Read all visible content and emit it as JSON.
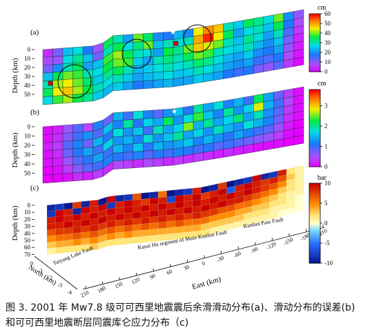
{
  "caption": {
    "line1": "图 3. 2001 年 Mw7.8 级可可西里地震震后余滑滑动分布(a)、滑动分布的误差(b)",
    "line2": "和可可西里地震断层同震库仑应力分布（c)"
  },
  "chart_data": [
    {
      "panel": "(a)",
      "type": "heatmap",
      "ylabel": "Depth (km)",
      "yticks": [
        0,
        10,
        20,
        30,
        40,
        50
      ],
      "colorbar": {
        "unit": "cm",
        "ticks": [
          0,
          10,
          20,
          30,
          40,
          50,
          60
        ],
        "range": [
          0,
          60
        ]
      },
      "rows": 7,
      "cols": 26,
      "markers": {
        "circles": 4,
        "stars": 2
      },
      "grid": [
        [
          5,
          12,
          25,
          28,
          18,
          9,
          35,
          30,
          22,
          40,
          34,
          20,
          18,
          24,
          20,
          45,
          52,
          48,
          30,
          26,
          35,
          32,
          28,
          40,
          20,
          10
        ],
        [
          8,
          10,
          28,
          32,
          25,
          12,
          30,
          36,
          28,
          33,
          40,
          25,
          30,
          28,
          30,
          50,
          58,
          45,
          35,
          22,
          28,
          30,
          25,
          35,
          18,
          8
        ],
        [
          12,
          20,
          30,
          35,
          22,
          25,
          38,
          42,
          35,
          30,
          28,
          22,
          36,
          32,
          40,
          48,
          44,
          40,
          30,
          25,
          32,
          28,
          22,
          30,
          15,
          6
        ],
        [
          25,
          35,
          40,
          38,
          30,
          28,
          36,
          40,
          38,
          26,
          22,
          30,
          33,
          30,
          35,
          40,
          38,
          30,
          28,
          26,
          30,
          24,
          20,
          25,
          12,
          4
        ],
        [
          30,
          42,
          45,
          40,
          34,
          26,
          32,
          35,
          30,
          24,
          26,
          28,
          30,
          28,
          30,
          34,
          32,
          28,
          24,
          22,
          26,
          20,
          18,
          22,
          10,
          3
        ],
        [
          35,
          45,
          48,
          42,
          36,
          30,
          28,
          30,
          26,
          22,
          24,
          26,
          28,
          25,
          26,
          30,
          28,
          25,
          22,
          20,
          22,
          16,
          15,
          18,
          8,
          2
        ],
        [
          28,
          38,
          42,
          36,
          32,
          26,
          24,
          26,
          22,
          18,
          20,
          22,
          24,
          22,
          22,
          26,
          24,
          22,
          18,
          16,
          18,
          12,
          10,
          14,
          6,
          1
        ]
      ]
    },
    {
      "panel": "(b)",
      "type": "heatmap",
      "ylabel": "Depth (km)",
      "yticks": [
        0,
        10,
        20,
        30,
        40,
        50
      ],
      "colorbar": {
        "unit": "cm",
        "ticks": [
          0,
          1,
          2,
          3
        ],
        "range": [
          0,
          3.8
        ]
      },
      "rows": 7,
      "cols": 26,
      "grid": [
        [
          0.1,
          0.2,
          0.6,
          0.9,
          0.5,
          1.2,
          0.8,
          1.5,
          1.0,
          1.8,
          1.2,
          0.9,
          1.3,
          1.6,
          1.1,
          2.0,
          1.4,
          1.8,
          1.2,
          1.5,
          1.0,
          2.2,
          1.4,
          0.8,
          0.4,
          0.1
        ],
        [
          0.1,
          0.3,
          0.7,
          1.0,
          1.3,
          0.9,
          1.6,
          1.2,
          2.0,
          1.1,
          1.7,
          1.4,
          2.2,
          1.3,
          1.8,
          2.4,
          1.6,
          1.2,
          2.0,
          1.3,
          1.7,
          2.8,
          1.5,
          1.0,
          0.5,
          0.1
        ],
        [
          0.2,
          0.4,
          0.9,
          1.2,
          0.8,
          1.5,
          1.1,
          1.8,
          1.3,
          1.6,
          1.0,
          1.9,
          1.4,
          1.7,
          2.6,
          1.5,
          2.0,
          1.4,
          1.7,
          2.1,
          1.4,
          1.9,
          1.3,
          0.9,
          0.4,
          0.1
        ],
        [
          0.1,
          0.3,
          0.8,
          1.1,
          1.4,
          1.0,
          1.7,
          1.3,
          1.5,
          1.2,
          1.8,
          1.3,
          1.6,
          2.0,
          1.4,
          1.7,
          1.3,
          1.9,
          1.5,
          1.3,
          1.8,
          1.5,
          1.2,
          0.8,
          0.3,
          0.1
        ],
        [
          0.1,
          0.2,
          0.6,
          0.9,
          1.1,
          1.4,
          1.0,
          1.5,
          1.2,
          1.6,
          1.1,
          1.5,
          1.3,
          1.4,
          1.6,
          1.2,
          1.5,
          1.3,
          1.1,
          1.4,
          1.2,
          1.0,
          0.9,
          0.6,
          0.2,
          0.0
        ],
        [
          0.0,
          0.1,
          0.4,
          0.7,
          0.9,
          1.0,
          1.2,
          1.1,
          1.0,
          1.2,
          0.9,
          1.1,
          1.0,
          1.2,
          1.1,
          1.0,
          1.1,
          0.9,
          1.0,
          0.9,
          0.8,
          0.7,
          0.6,
          0.4,
          0.1,
          0.0
        ],
        [
          0.0,
          0.0,
          0.1,
          0.3,
          0.2,
          0.4,
          0.3,
          0.5,
          0.4,
          0.3,
          0.5,
          0.4,
          0.3,
          0.4,
          0.3,
          0.4,
          0.3,
          0.2,
          0.3,
          0.2,
          0.2,
          0.1,
          0.1,
          0.1,
          0.0,
          0.0
        ]
      ]
    },
    {
      "panel": "(c)",
      "type": "heatmap",
      "ylabel": "Depth (km)",
      "yticks": [
        0,
        10,
        20,
        30,
        40,
        50,
        60,
        70
      ],
      "xlabel": "East (km)",
      "xticks": [
        -210,
        -180,
        -150,
        -120,
        -90,
        -60,
        -30,
        0,
        30,
        60,
        90,
        120,
        150,
        180,
        210
      ],
      "zlabel": "North (km)",
      "zticks": [
        0,
        -1,
        -2,
        -3,
        -4
      ],
      "colorbar": {
        "unit": "bar",
        "ticks": [
          -10,
          -5,
          0,
          5,
          10
        ],
        "range": [
          -10,
          10
        ]
      },
      "fault_labels": [
        "Taiyang Lake Fault",
        "Kusai Hu segment of Main Kunlun Fault",
        "Kunlun Pass Fault"
      ],
      "rows": 8,
      "cols": 30,
      "grid": [
        [
          -9,
          -8,
          -10,
          8,
          -9,
          9,
          -10,
          10,
          -9,
          -8,
          7,
          -10,
          -9,
          6,
          -10,
          -9,
          -8,
          9,
          -10,
          -9,
          8,
          -10,
          -9,
          -8,
          10,
          -9,
          -8,
          9,
          2,
          1
        ],
        [
          -8,
          10,
          9,
          -9,
          10,
          9,
          10,
          -8,
          9,
          10,
          9,
          8,
          10,
          9,
          -7,
          10,
          9,
          10,
          8,
          9,
          10,
          -6,
          9,
          10,
          9,
          8,
          9,
          7,
          3,
          1
        ],
        [
          9,
          10,
          9,
          10,
          9,
          10,
          9,
          10,
          9,
          10,
          9,
          10,
          9,
          10,
          9,
          10,
          9,
          10,
          9,
          10,
          9,
          10,
          9,
          10,
          9,
          8,
          7,
          5,
          2,
          1
        ],
        [
          9,
          9,
          10,
          9,
          10,
          9,
          10,
          9,
          10,
          9,
          10,
          9,
          10,
          9,
          10,
          9,
          10,
          9,
          10,
          9,
          10,
          9,
          9,
          8,
          7,
          6,
          5,
          3,
          2,
          1
        ],
        [
          7,
          8,
          8,
          9,
          8,
          9,
          8,
          9,
          8,
          9,
          8,
          9,
          8,
          9,
          8,
          9,
          8,
          9,
          8,
          8,
          7,
          7,
          6,
          6,
          5,
          4,
          3,
          2,
          1,
          1
        ],
        [
          5,
          6,
          6,
          7,
          6,
          7,
          6,
          7,
          6,
          7,
          6,
          7,
          6,
          7,
          6,
          7,
          6,
          6,
          6,
          5,
          5,
          5,
          4,
          4,
          3,
          3,
          2,
          2,
          1,
          0
        ],
        [
          3,
          4,
          4,
          5,
          4,
          5,
          4,
          5,
          4,
          5,
          4,
          4,
          4,
          4,
          4,
          4,
          4,
          4,
          3,
          3,
          3,
          3,
          3,
          2,
          2,
          2,
          1,
          1,
          1,
          0
        ],
        [
          1,
          2,
          2,
          2,
          2,
          3,
          2,
          2,
          2,
          2,
          2,
          2,
          2,
          2,
          2,
          2,
          2,
          2,
          2,
          1,
          1,
          1,
          1,
          1,
          1,
          1,
          1,
          0,
          0,
          0
        ]
      ]
    }
  ]
}
